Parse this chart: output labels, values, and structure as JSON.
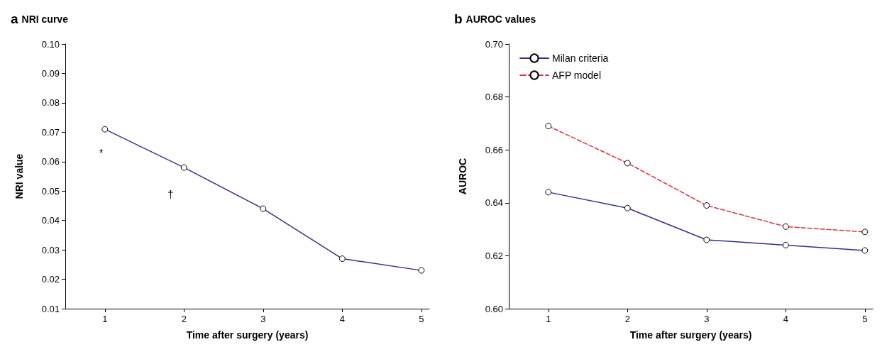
{
  "chart_data": [
    {
      "type": "line",
      "title": "a NRI curve",
      "xlabel": "Time after surgery (years)",
      "ylabel": "NRI value",
      "x": [
        1,
        2,
        3,
        4,
        5
      ],
      "series": [
        {
          "color": "#2e3192",
          "values": [
            0.071,
            0.058,
            0.044,
            0.027,
            0.023
          ]
        }
      ],
      "xlim": [
        0.5,
        5.1
      ],
      "xticks": [
        1,
        2,
        3,
        4,
        5
      ],
      "ylim": [
        0.01,
        0.1
      ],
      "yticks": [
        0.01,
        0.02,
        0.03,
        0.04,
        0.05,
        0.06,
        0.07,
        0.08,
        0.09,
        {
          "value": 0.1,
          "label": "0.10"
        }
      ],
      "annotations": [
        "*",
        "†"
      ],
      "marker": "circle",
      "line_style": "solid",
      "grid": false,
      "legend": false
    },
    {
      "type": "line",
      "title": "b AUROC values",
      "xlabel": "Time after surgery (years)",
      "ylabel": "AUROC",
      "x": [
        1,
        2,
        3,
        4,
        5
      ],
      "series": [
        {
          "name": "Milan criteria",
          "color": "#2e3192",
          "line_style": "solid",
          "values": [
            0.644,
            0.638,
            0.626,
            0.624,
            0.622
          ]
        },
        {
          "name": "AFP model",
          "color": "#e0323c",
          "line_style": "dashed",
          "values": [
            0.669,
            0.655,
            0.639,
            0.631,
            0.629
          ]
        }
      ],
      "xlim": [
        0.5,
        5.1
      ],
      "xticks": [
        1,
        2,
        3,
        4,
        5
      ],
      "ylim": [
        0.6,
        0.7
      ],
      "yticks": [
        {
          "value": 0.6,
          "label": "0.60"
        },
        0.62,
        0.64,
        0.66,
        0.68,
        {
          "value": 0.7,
          "label": "0.70"
        }
      ],
      "marker": "circle",
      "grid": false,
      "legend": "top left"
    }
  ]
}
